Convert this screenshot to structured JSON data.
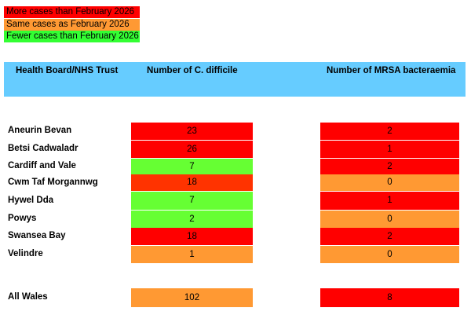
{
  "legend": {
    "more": "More cases than February 2026",
    "same": "Same cases as February 2026",
    "fewer": "Fewer cases than February 2026",
    "colors": {
      "more": "#ff0000",
      "same": "#ff9933",
      "fewer": "#33ff33"
    }
  },
  "table": {
    "headers": {
      "board": "Health Board/NHS Trust",
      "cdiff": "Number of C. difficile",
      "mrsa": "Number of MRSA bacteraemia"
    },
    "rows": [
      {
        "name": "Aneurin Bevan",
        "cdiff": "23",
        "cdiff_status": "more",
        "mrsa": "2",
        "mrsa_status": "more"
      },
      {
        "name": "Betsi Cadwaladr",
        "cdiff": "26",
        "cdiff_status": "more",
        "mrsa": "1",
        "mrsa_status": "more"
      },
      {
        "name": "Cardiff and Vale",
        "cdiff": "7",
        "cdiff_status": "fewer",
        "mrsa": "2",
        "mrsa_status": "more"
      },
      {
        "name": "Cwm Taf Morgannwg",
        "cdiff": "18",
        "cdiff_status": "more",
        "mrsa": "0",
        "mrsa_status": "same"
      },
      {
        "name": "Hywel Dda",
        "cdiff": "7",
        "cdiff_status": "fewer",
        "mrsa": "1",
        "mrsa_status": "more"
      },
      {
        "name": "Powys",
        "cdiff": "2",
        "cdiff_status": "fewer",
        "mrsa": "0",
        "mrsa_status": "same"
      },
      {
        "name": "Swansea Bay",
        "cdiff": "18",
        "cdiff_status": "more",
        "mrsa": "2",
        "mrsa_status": "more"
      },
      {
        "name": "Velindre",
        "cdiff": "1",
        "cdiff_status": "same",
        "mrsa": "0",
        "mrsa_status": "same"
      }
    ],
    "total": {
      "name": "All Wales",
      "cdiff": "102",
      "cdiff_status": "same",
      "mrsa": "8",
      "mrsa_status": "more"
    }
  }
}
